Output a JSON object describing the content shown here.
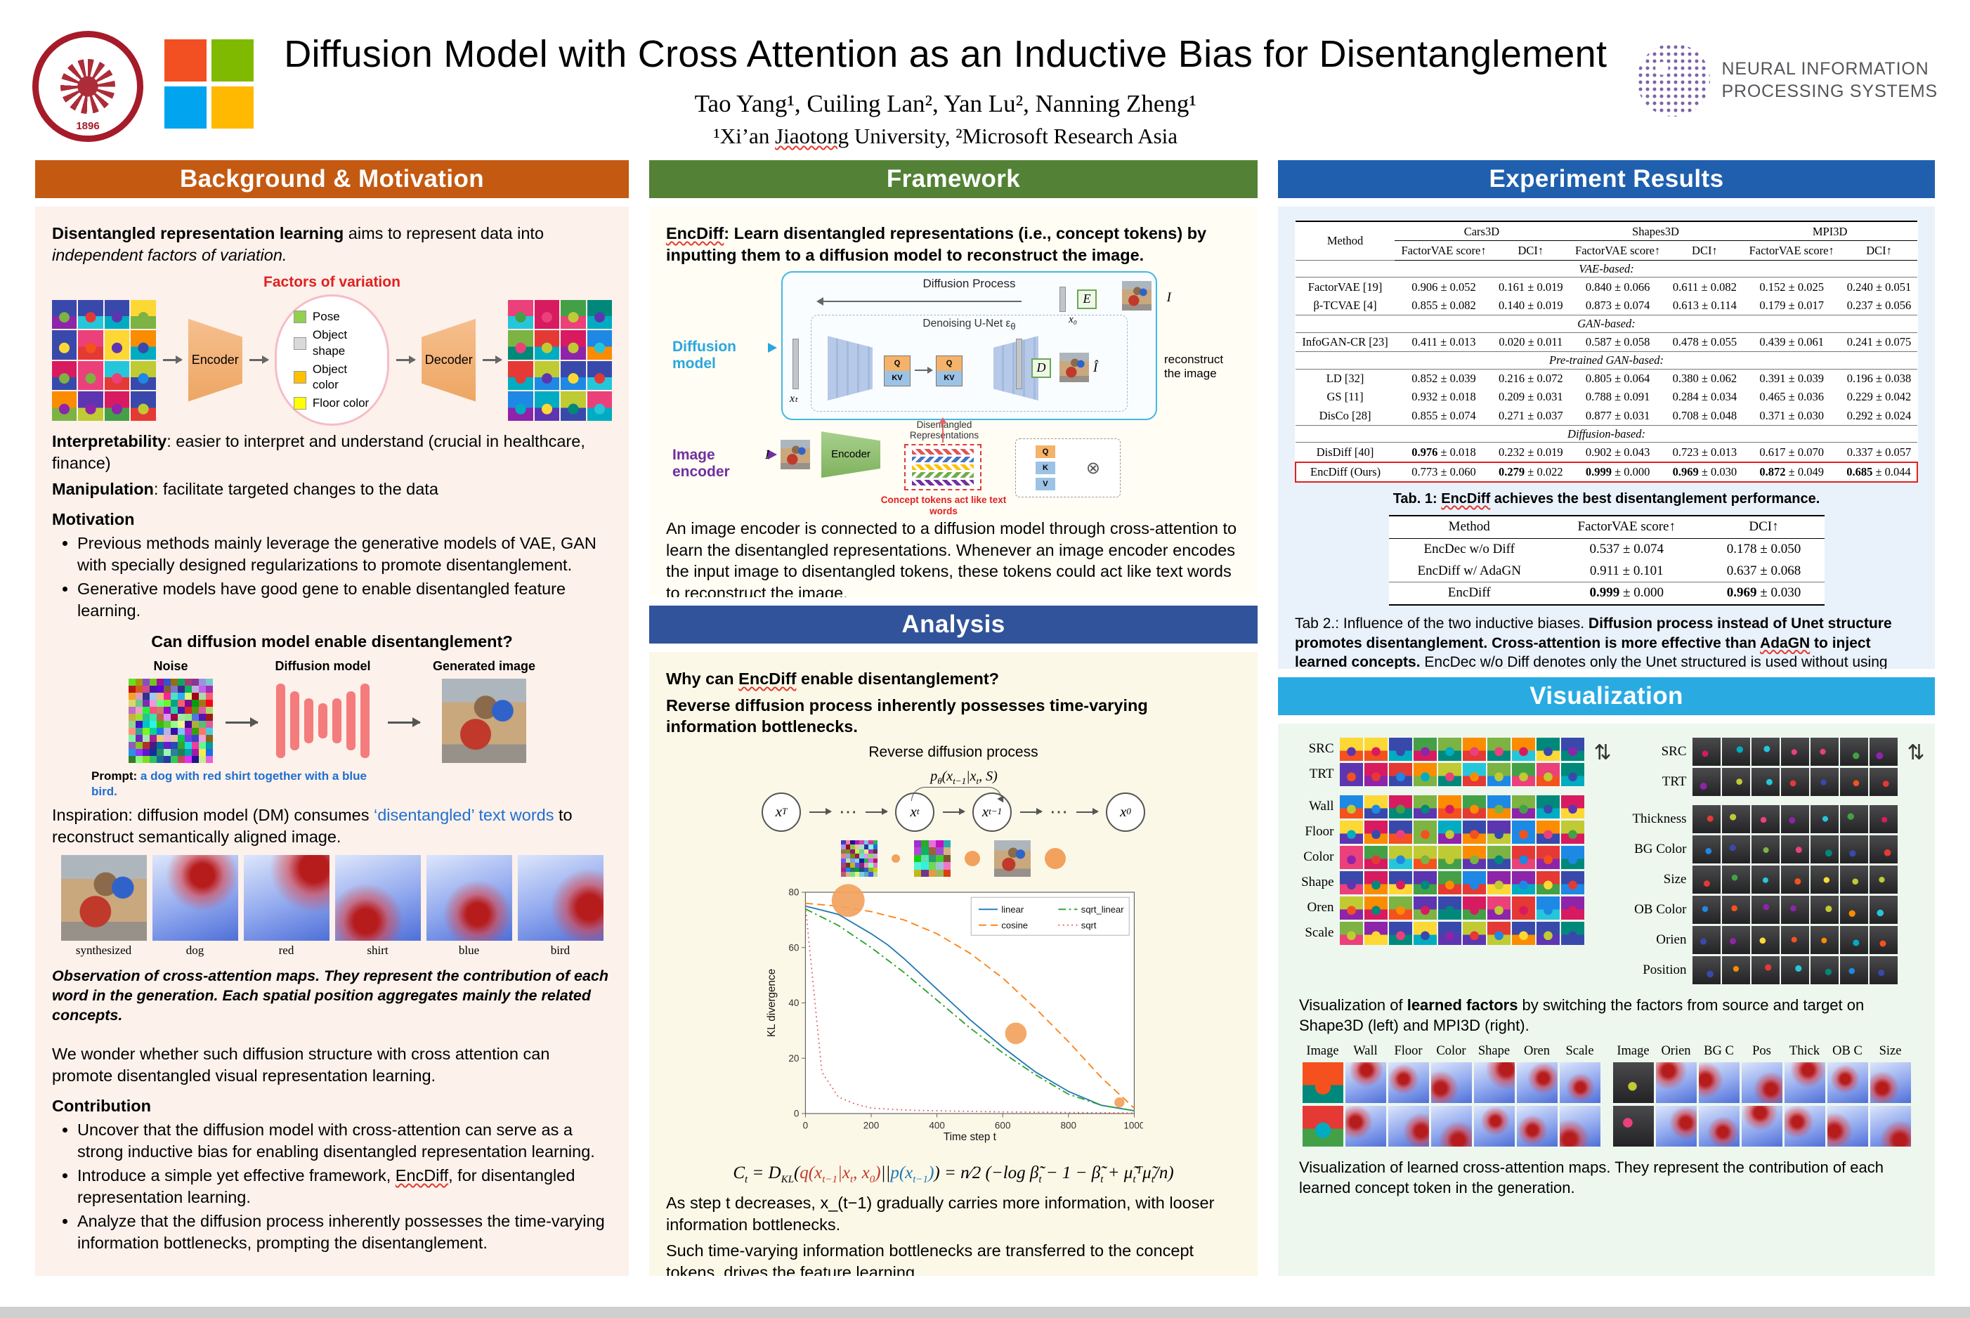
{
  "header": {
    "title": "Diffusion Model with Cross Attention as an Inductive Bias for Disentanglement",
    "authors": "Tao Yang¹,   Cuiling Lan²,   Yan Lu²,   Nanning Zheng¹",
    "affiliations": [
      {
        "t": "¹Xi’an "
      },
      {
        "t": "Jiaotong",
        "u": 1
      },
      {
        "t": " University,   ²Microsoft Research Asia"
      }
    ],
    "xjtu_year": "1896",
    "neurips_line1": "NEURAL INFORMATION",
    "neurips_line2": "PROCESSING SYSTEMS"
  },
  "icons": {
    "swap": "⇅",
    "otimes": "⊗"
  },
  "background": {
    "header": "Background & Motivation",
    "intro": [
      {
        "t": "Disentangled representation learning",
        "b": 1
      },
      {
        "t": " aims to represent data into "
      },
      {
        "t": "independent factors of variation.",
        "i": 1
      }
    ],
    "factors_label": "Factors of variation",
    "encoder_label": "Encoder",
    "decoder_label": "Decoder",
    "factors": [
      {
        "label": "Pose",
        "color": "#92d050"
      },
      {
        "label": "Object shape",
        "color": "#d9d9d9"
      },
      {
        "label": "Object color",
        "color": "#ffc000"
      },
      {
        "label": "Floor color",
        "color": "#ffff00"
      }
    ],
    "interpretability": [
      {
        "t": "Interpretability",
        "b": 1
      },
      {
        "t": ": easier to interpret and understand (crucial in healthcare, finance)"
      }
    ],
    "manipulation": [
      {
        "t": "Manipulation",
        "b": 1
      },
      {
        "t": ": facilitate targeted changes to the data"
      }
    ],
    "motivation_title": "Motivation",
    "motivation_bullets": [
      [
        {
          "t": "Previous methods mainly leverage the generative models of VAE, GAN with specially designed regularizations to promote disentanglement."
        }
      ],
      [
        {
          "t": "Generative models have good gene to enable disentangled feature learning."
        }
      ]
    ],
    "question": "Can diffusion model enable disentanglement?",
    "noise_label": "Noise",
    "dm_label": "Diffusion model",
    "gen_label": "Generated image",
    "prompt": [
      {
        "t": "Prompt: ",
        "b": 1
      },
      {
        "t": "a dog with red shirt together with a blue bird.",
        "b": 1,
        "c": "#1f6fd0"
      }
    ],
    "inspiration": [
      {
        "t": "Inspiration: diffusion model (DM) consumes "
      },
      {
        "t": "‘disentangled’ text words",
        "c": "#1f6fd0"
      },
      {
        "t": " to reconstruct semantically aligned image."
      }
    ],
    "attention_labels": [
      "synthesized",
      "dog",
      "red",
      "shirt",
      "blue",
      "bird"
    ],
    "observation": [
      {
        "t": "Observation of cross-attention maps. They represent the contribution of each word in the generation. Each spatial position aggregates mainly the related concepts.",
        "b": 1,
        "i": 1
      }
    ],
    "wonder": "We wonder whether such diffusion structure with cross attention can promote disentangled visual representation learning.",
    "contribution_title": "Contribution",
    "contribution_bullets": [
      [
        {
          "t": "Uncover that the diffusion model with cross-attention can serve as a strong inductive bias for enabling disentangled representation learning."
        }
      ],
      [
        {
          "t": "Introduce a simple yet effective framework, "
        },
        {
          "t": "EncDiff",
          "u": 1
        },
        {
          "t": ", for disentangled representation learning."
        }
      ],
      [
        {
          "t": "Analyze that the diffusion process inherently possesses the time-varying information bottlenecks, prompting the disentanglement."
        }
      ]
    ]
  },
  "framework": {
    "header": "Framework",
    "intro": [
      {
        "t": "EncDiff",
        "b": 1,
        "u": 1
      },
      {
        "t": ": Learn disentangled representations (i.e., concept tokens) by inputting them to a diffusion model to reconstruct the image.",
        "b": 1
      }
    ],
    "diagram": {
      "diffusion_process": "Diffusion Process",
      "denoising_unet": [
        {
          "t": "Denoising U-Net "
        },
        {
          "t": "ε"
        },
        {
          "t": "θ",
          "sub": 1
        }
      ],
      "diffusion_model": "Diffusion model",
      "image_encoder": "Image encoder",
      "encoder": "Encoder",
      "disentangled": "Disentangled Representations",
      "concept_tokens": "Concept tokens act like text words",
      "reconstruct": "reconstruct the image",
      "x_t": "xₜ",
      "x_0": "x₀",
      "E": "E",
      "D": "D",
      "I": "I",
      "I_hat": "Î",
      "Q": "Q",
      "KV": "KV",
      "K": "K",
      "V": "V"
    },
    "body": "An image encoder is connected to a diffusion model through cross-attention to learn the disentangled representations. Whenever an image encoder encodes the input image to disentangled tokens, these tokens could act like text words to reconstruct the image."
  },
  "analysis": {
    "header": "Analysis",
    "q1": [
      {
        "t": "Why can ",
        "b": 1
      },
      {
        "t": "EncDiff",
        "b": 1,
        "u": 1
      },
      {
        "t": " enable disentanglement?",
        "b": 1
      }
    ],
    "q2": "Reverse diffusion process inherently possesses time-varying information bottlenecks.",
    "diagram_title": "Reverse diffusion process",
    "p_label": [
      {
        "t": "p"
      },
      {
        "t": "θ",
        "sub": 1
      },
      {
        "t": "(x"
      },
      {
        "t": "t−1",
        "sub": 1
      },
      {
        "t": "|x"
      },
      {
        "t": "t",
        "sub": 1
      },
      {
        "t": ", S)"
      }
    ],
    "chain": [
      {
        "l": "x",
        "s": "T"
      },
      {
        "dots": "⋯"
      },
      {
        "l": "x",
        "s": "t"
      },
      {
        "l": "x",
        "s": "t−1"
      },
      {
        "dots": "⋯"
      },
      {
        "l": "x",
        "s": "0"
      }
    ],
    "formula": [
      {
        "t": "C"
      },
      {
        "t": "t",
        "sub": 1
      },
      {
        "t": " = D"
      },
      {
        "t": "KL",
        "sub": 1
      },
      {
        "t": "("
      },
      {
        "t": "q(x",
        "c": "#c0392b"
      },
      {
        "t": "t−1",
        "sub": 1,
        "c": "#c0392b"
      },
      {
        "t": "|x",
        "c": "#c0392b"
      },
      {
        "t": "t",
        "sub": 1,
        "c": "#c0392b"
      },
      {
        "t": ", x",
        "c": "#c0392b"
      },
      {
        "t": "0",
        "sub": 1,
        "c": "#c0392b"
      },
      {
        "t": ")",
        "c": "#c0392b"
      },
      {
        "t": "||"
      },
      {
        "t": "p(x",
        "c": "#1f77b4"
      },
      {
        "t": "t−1",
        "sub": 1,
        "c": "#1f77b4"
      },
      {
        "t": ")",
        "c": "#1f77b4"
      },
      {
        "t": ") = "
      },
      {
        "t": "n"
      },
      {
        "t": "⁄"
      },
      {
        "t": "2"
      },
      {
        "t": " (−log β̃"
      },
      {
        "t": "t",
        "sub": 1
      },
      {
        "t": " − 1 − β̃"
      },
      {
        "t": "t",
        "sub": 1
      },
      {
        "t": " + μ̃"
      },
      {
        "t": "t",
        "sub": 1
      },
      {
        "t": "ᵀ"
      },
      {
        "t": "μ̃"
      },
      {
        "t": "t",
        "sub": 1
      },
      {
        "t": "/n)"
      }
    ],
    "body1": "As step t decreases, x_(t−1) gradually carries more information, with looser information bottlenecks.",
    "body2": "Such time-varying information bottlenecks are transferred to the concept tokens, drives the feature learning."
  },
  "chart_data": {
    "type": "line",
    "title": "",
    "xlabel": "Time step t",
    "ylabel": "KL divergence",
    "xlim": [
      0,
      1000
    ],
    "ylim": [
      0,
      80
    ],
    "x_ticks": [
      0,
      200,
      400,
      600,
      800,
      1000
    ],
    "y_ticks": [
      0,
      20,
      40,
      60,
      80
    ],
    "grid": false,
    "legend_position": "upper right",
    "x": [
      0,
      50,
      100,
      150,
      200,
      250,
      300,
      350,
      400,
      450,
      500,
      550,
      600,
      650,
      700,
      750,
      800,
      850,
      900,
      950,
      1000
    ],
    "series": [
      {
        "name": "linear",
        "color": "#1f77b4",
        "style": "solid",
        "values": [
          75,
          73.5,
          72,
          68.5,
          65,
          61,
          56,
          50.5,
          45,
          39.5,
          34,
          29,
          24,
          19.5,
          15,
          11.5,
          8,
          5.5,
          3,
          2,
          1
        ]
      },
      {
        "name": "cosine",
        "color": "#ff7f0e",
        "style": "dashed",
        "values": [
          76,
          75.5,
          75,
          74,
          73,
          71.5,
          70,
          67.5,
          65,
          61.5,
          58,
          53.5,
          49,
          43.5,
          38,
          32,
          26,
          19.5,
          13,
          7.5,
          2
        ]
      },
      {
        "name": "sqrt_linear",
        "color": "#2ca02c",
        "style": "dashdot",
        "values": [
          74,
          71,
          68,
          64,
          60,
          55.5,
          51,
          46,
          41,
          36,
          31,
          26.5,
          22,
          18,
          14,
          10.5,
          7,
          5,
          3,
          2,
          1
        ]
      },
      {
        "name": "sqrt",
        "color": "#e06060",
        "style": "dotted",
        "values": [
          75,
          15,
          6,
          3.5,
          2,
          1.6,
          1.3,
          1.1,
          1,
          0.9,
          0.8,
          0.7,
          0.6,
          0.55,
          0.5,
          0.45,
          0.4,
          0.35,
          0.3,
          0.25,
          0.2
        ]
      }
    ],
    "bubbles": [
      {
        "x": 130,
        "y": 77,
        "r": 26
      },
      {
        "x": 640,
        "y": 29,
        "r": 17
      },
      {
        "x": 955,
        "y": 4,
        "r": 8
      }
    ]
  },
  "results": {
    "header": "Experiment Results",
    "tab1": {
      "method_col": "Method",
      "col_groups": [
        "Cars3D",
        "Shapes3D",
        "MPI3D"
      ],
      "sub_cols": [
        "FactorVAE score↑",
        "DCI↑"
      ],
      "sections": [
        {
          "label": "VAE-based:",
          "rows": [
            {
              "method": "FactorVAE [19]",
              "values": [
                "0.906 ± 0.052",
                "0.161 ± 0.019",
                "0.840 ± 0.066",
                "0.611 ± 0.082",
                "0.152 ± 0.025",
                "0.240 ± 0.051"
              ],
              "bold": []
            },
            {
              "method": "β-TCVAE [4]",
              "values": [
                "0.855 ± 0.082",
                "0.140 ± 0.019",
                "0.873 ± 0.074",
                "0.613 ± 0.114",
                "0.179 ± 0.017",
                "0.237 ± 0.056"
              ],
              "bold": []
            }
          ]
        },
        {
          "label": "GAN-based:",
          "rows": [
            {
              "method": "InfoGAN-CR [23]",
              "values": [
                "0.411 ± 0.013",
                "0.020 ± 0.011",
                "0.587 ± 0.058",
                "0.478 ± 0.055",
                "0.439 ± 0.061",
                "0.241 ± 0.075"
              ],
              "bold": []
            }
          ]
        },
        {
          "label": "Pre-trained GAN-based:",
          "rows": [
            {
              "method": "LD [32]",
              "values": [
                "0.852 ± 0.039",
                "0.216 ± 0.072",
                "0.805 ± 0.064",
                "0.380 ± 0.062",
                "0.391 ± 0.039",
                "0.196 ± 0.038"
              ],
              "bold": []
            },
            {
              "method": "GS [11]",
              "values": [
                "0.932 ± 0.018",
                "0.209 ± 0.031",
                "0.788 ± 0.091",
                "0.284 ± 0.034",
                "0.465 ± 0.036",
                "0.229 ± 0.042"
              ],
              "bold": []
            },
            {
              "method": "DisCo [28]",
              "values": [
                "0.855 ± 0.074",
                "0.271 ± 0.037",
                "0.877 ± 0.031",
                "0.708 ± 0.048",
                "0.371 ± 0.030",
                "0.292 ± 0.024"
              ],
              "bold": []
            }
          ]
        },
        {
          "label": "Diffusion-based:",
          "rows": [
            {
              "method": "DisDiff [40]",
              "values": [
                "0.976 ± 0.018",
                "0.232 ± 0.019",
                "0.902 ± 0.043",
                "0.723 ± 0.013",
                "0.617 ± 0.070",
                "0.337 ± 0.057"
              ],
              "bold": [
                0
              ]
            },
            {
              "method": "EncDiff (Ours)",
              "values": [
                "0.773 ± 0.060",
                "0.279 ± 0.022",
                "0.999 ± 0.000",
                "0.969 ± 0.030",
                "0.872 ± 0.049",
                "0.685 ± 0.044"
              ],
              "bold": [
                1,
                2,
                3,
                4,
                5
              ],
              "highlight": true
            }
          ]
        }
      ],
      "caption": [
        {
          "t": "Tab. 1: ",
          "b": 1
        },
        {
          "t": "EncDiff",
          "b": 1,
          "u": 1
        },
        {
          "t": " achieves the best disentanglement performance.",
          "b": 1
        }
      ]
    },
    "tab2": {
      "columns": [
        "Method",
        "FactorVAE score↑",
        "DCI↑"
      ],
      "rows": [
        {
          "method": "EncDec w/o Diff",
          "values": [
            "0.537 ± 0.074",
            "0.178 ± 0.050"
          ],
          "bold": []
        },
        {
          "method": "EncDiff w/ AdaGN",
          "values": [
            "0.911 ± 0.101",
            "0.637 ± 0.068"
          ],
          "bold": []
        },
        {
          "method": "EncDiff",
          "values": [
            "0.999 ± 0.000",
            "0.969 ± 0.030"
          ],
          "bold": [
            0,
            1
          ],
          "last": true
        }
      ],
      "caption": [
        {
          "t": "Tab 2.: Influence of the two inductive biases. "
        },
        {
          "t": "Diffusion process instead of Unet structure promotes disentanglement",
          "b": 1
        },
        {
          "t": ". ",
          "b": 1
        },
        {
          "t": "Cross-attention is more effective than ",
          "b": 1
        },
        {
          "t": "AdaGN",
          "b": 1,
          "u": 1
        },
        {
          "t": " to inject learned concepts",
          "b": 1
        },
        {
          "t": ". ",
          "b": 1
        },
        {
          "t": "EncDec",
          "u": 1
        },
        {
          "t": " w/o "
        },
        {
          "t": "Diff",
          "u": 1
        },
        {
          "t": " denotes only the "
        },
        {
          "t": "Unet",
          "u": 1
        },
        {
          "t": " structured is used without using diffusion process."
        }
      ]
    }
  },
  "visualization": {
    "header": "Visualization",
    "left_rows": [
      "SRC",
      "TRT",
      "Wall",
      "Floor",
      "Color",
      "Shape",
      "Oren",
      "Scale"
    ],
    "right_rows": [
      "SRC",
      "TRT",
      "Thickness",
      "BG Color",
      "Size",
      "OB Color",
      "Orien",
      "Position"
    ],
    "caption1": [
      {
        "t": "Visualization of "
      },
      {
        "t": "learned factors",
        "b": 1
      },
      {
        "t": " by switching the factors from source and target on Shape3D (left) and MPI3D (right)."
      }
    ],
    "attn_left_headers": [
      "Image",
      "Wall",
      "Floor",
      "Color",
      "Shape",
      "Oren",
      "Scale"
    ],
    "attn_right_headers": [
      "Image",
      "Orien",
      "BG C",
      "Pos",
      "Thick",
      "OB C",
      "Size"
    ],
    "caption2": "Visualization of learned cross-attention maps. They represent the contribution of each learned concept token in the generation."
  }
}
